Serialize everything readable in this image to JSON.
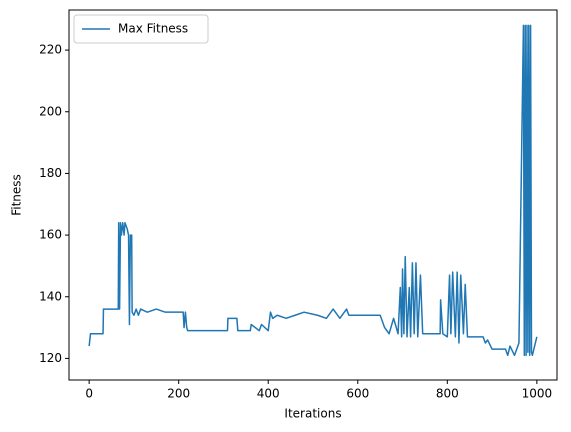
{
  "chart_data": {
    "type": "line",
    "xlabel": "Iterations",
    "ylabel": "Fitness",
    "xlim": [
      -45,
      1045
    ],
    "ylim": [
      113,
      233
    ],
    "xticks": [
      0,
      200,
      400,
      600,
      800,
      1000
    ],
    "yticks": [
      120,
      140,
      160,
      180,
      200,
      220
    ],
    "legend": "upper left",
    "x": [
      0,
      3,
      31,
      32,
      65,
      66,
      68,
      70,
      72,
      75,
      78,
      80,
      85,
      88,
      90,
      92,
      95,
      96,
      100,
      105,
      110,
      115,
      130,
      150,
      170,
      210,
      212,
      215,
      218,
      220,
      309,
      310,
      330,
      332,
      360,
      362,
      380,
      385,
      400,
      405,
      410,
      420,
      440,
      460,
      480,
      510,
      530,
      545,
      560,
      575,
      580,
      650,
      660,
      670,
      680,
      690,
      695,
      698,
      700,
      703,
      706,
      710,
      715,
      718,
      722,
      726,
      730,
      734,
      740,
      745,
      784,
      785,
      790,
      800,
      805,
      808,
      812,
      818,
      822,
      826,
      830,
      836,
      840,
      845,
      880,
      885,
      890,
      900,
      930,
      935,
      940,
      950,
      960,
      970,
      972,
      974,
      976,
      978,
      980,
      982,
      984,
      986,
      988,
      990,
      995,
      1000
    ],
    "series": [
      {
        "name": "Max Fitness",
        "color": "#1f77b4",
        "values": [
          124,
          128,
          128,
          136,
          136,
          164,
          136,
          164,
          160,
          164,
          160,
          164,
          162,
          160,
          131,
          160,
          160,
          135,
          134,
          136,
          134,
          136,
          135,
          136,
          135,
          135,
          130,
          135,
          130,
          129,
          129,
          133,
          133,
          129,
          129,
          131,
          129,
          131,
          129,
          135,
          133,
          134,
          133,
          134,
          135,
          134,
          133,
          136,
          133,
          136,
          134,
          134,
          130,
          128,
          133,
          128,
          143,
          127,
          149,
          128,
          153,
          127,
          143,
          127,
          151,
          128,
          151,
          127,
          147,
          128,
          128,
          139,
          128,
          127,
          147,
          128,
          148,
          127,
          148,
          125,
          147,
          128,
          144,
          127,
          127,
          125,
          126,
          123,
          123,
          121,
          124,
          121,
          125,
          228,
          121,
          228,
          121,
          228,
          122,
          228,
          121,
          228,
          122,
          121,
          124,
          127
        ]
      }
    ]
  }
}
